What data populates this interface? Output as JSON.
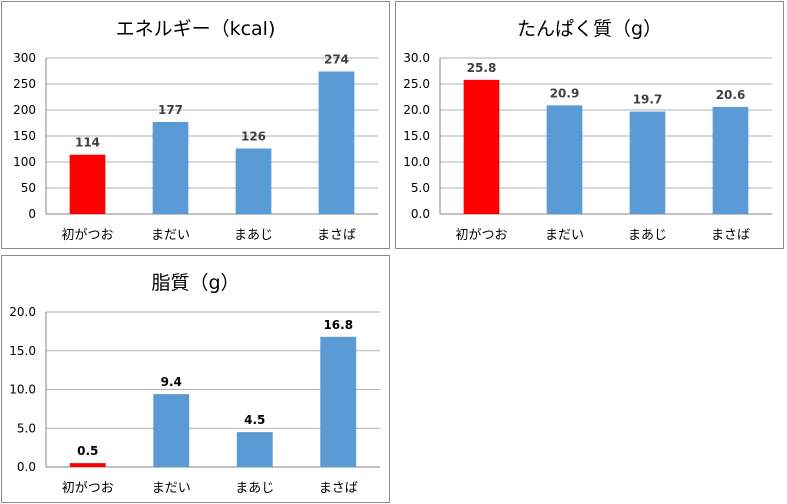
{
  "chart_data": [
    {
      "type": "bar",
      "title": "エネルギー（kcal)",
      "categories": [
        "初がつお",
        "まだい",
        "まあじ",
        "まさば"
      ],
      "values": [
        114,
        177,
        126,
        274
      ],
      "data_labels": [
        "114",
        "177",
        "126",
        "274"
      ],
      "ylim": [
        0,
        300
      ],
      "yticks": [
        "0",
        "50",
        "100",
        "150",
        "200",
        "250",
        "300"
      ],
      "grid": true,
      "legend": "none",
      "highlight_index": 0,
      "colors": {
        "highlight": "#ff0000",
        "bar": "#5b9bd5",
        "label": "#404040"
      }
    },
    {
      "type": "bar",
      "title": "たんぱく質（g）",
      "categories": [
        "初がつお",
        "まだい",
        "まあじ",
        "まさば"
      ],
      "values": [
        25.8,
        20.9,
        19.7,
        20.6
      ],
      "data_labels": [
        "25.8",
        "20.9",
        "19.7",
        "20.6"
      ],
      "ylim": [
        0,
        30
      ],
      "yticks": [
        "0.0",
        "5.0",
        "10.0",
        "15.0",
        "20.0",
        "25.0",
        "30.0"
      ],
      "grid": true,
      "legend": "none",
      "highlight_index": 0,
      "colors": {
        "highlight": "#ff0000",
        "bar": "#5b9bd5",
        "label": "#404040"
      }
    },
    {
      "type": "bar",
      "title": "脂質（g）",
      "categories": [
        "初がつお",
        "まだい",
        "まあじ",
        "まさば"
      ],
      "values": [
        0.5,
        9.4,
        4.5,
        16.8
      ],
      "data_labels": [
        "0.5",
        "9.4",
        "4.5",
        "16.8"
      ],
      "ylim": [
        0,
        20
      ],
      "yticks": [
        "0.0",
        "5.0",
        "10.0",
        "15.0",
        "20.0"
      ],
      "grid": true,
      "legend": "none",
      "highlight_index": 0,
      "colors": {
        "highlight": "#ff0000",
        "bar": "#5b9bd5",
        "label": "#000000"
      }
    }
  ]
}
